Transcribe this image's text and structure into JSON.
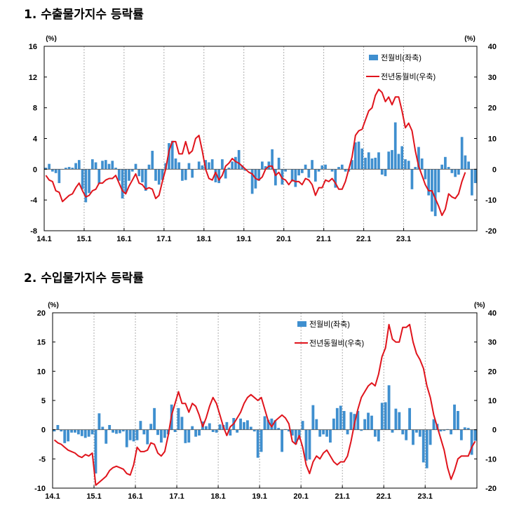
{
  "headings": [
    "1. 수출물가지수 등락률",
    "2. 수입물가지수 등락률"
  ],
  "colors": {
    "bar": "#3F8FCF",
    "line": "#E0141C",
    "grid": "#999999",
    "axis": "#000000"
  },
  "chart_data": [
    {
      "type": "bar",
      "title": "1. 수출물가지수 등락률",
      "ylabel_left": "(%)",
      "ylabel_right": "(%)",
      "ylim_left": [
        -8,
        16
      ],
      "ylim_right": [
        -20,
        40
      ],
      "yticks_left": [
        -8,
        -4,
        0,
        4,
        8,
        12,
        16
      ],
      "yticks_right": [
        -20,
        -10,
        0,
        10,
        20,
        30,
        40
      ],
      "xticks": [
        "14.1",
        "15.1",
        "16.1",
        "17.1",
        "18.1",
        "19.1",
        "20.1",
        "21.1",
        "22.1",
        "23.1"
      ],
      "grid": "vertical dashed at year starts",
      "legend_position": "top-right",
      "series": [
        {
          "name": "전월비(좌축)",
          "type": "bar",
          "axis": "left",
          "values": [
            0.2,
            0.7,
            -0.3,
            -0.5,
            -1.8,
            0,
            0.2,
            0.3,
            0.2,
            0.8,
            1.2,
            -2.6,
            -4.3,
            -3.1,
            1.3,
            0.9,
            -1.9,
            1.1,
            1.2,
            0.7,
            1.1,
            0.2,
            -1.5,
            -3.8,
            -3.1,
            -1.5,
            -0.3,
            0.7,
            -0.9,
            -1.7,
            -2.8,
            0.6,
            2.4,
            -1.5,
            -2.0,
            -1.4,
            0.8,
            3.4,
            3.7,
            1.4,
            0.9,
            -1.5,
            -1.4,
            0.8,
            -1.1,
            0,
            1.0,
            0.5,
            1.2,
            0.9,
            1.3,
            -1.7,
            -1.8,
            1.3,
            -1.2,
            0.2,
            1.0,
            1.6,
            2.5,
            0.5,
            -0.2,
            0,
            -3.2,
            -2.5,
            -1.5,
            1.0,
            0.4,
            1.0,
            2.6,
            -2.1,
            1.5,
            -2.0,
            -0.3,
            0,
            -1.6,
            -2.3,
            -0.8,
            -0.5,
            0.6,
            -1.1,
            1.2,
            -1.6,
            -0.3,
            0.5,
            0.6,
            0,
            -0.3,
            -2.4,
            0.3,
            0.6,
            -0.3,
            -0.3,
            1.2,
            3.5,
            3.6,
            2.7,
            1.5,
            2.2,
            1.4,
            1.5,
            2.2,
            -0.7,
            -0.9,
            2.3,
            2.5,
            6.1,
            2.0,
            3.0,
            1.3,
            1.1,
            -2.6,
            0.3,
            2.9,
            1.4,
            -1.3,
            -3.4,
            -5.5,
            -6.1,
            -3.0,
            0.6,
            1.6,
            0.3,
            -0.5,
            -1.0,
            -0.7,
            4.2,
            1.8,
            1.0,
            -3.4,
            -1.8
          ]
        },
        {
          "name": "전년동월비(우축)",
          "type": "line",
          "axis": "right",
          "values": [
            -2,
            -3.5,
            -4,
            -7,
            -7.5,
            -10.5,
            -9.5,
            -8.5,
            -8,
            -6,
            -4.5,
            -7,
            -9,
            -8.5,
            -7,
            -6.5,
            -4.5,
            -4.5,
            -3.5,
            -3,
            -3,
            -2,
            -4.5,
            -7,
            -8,
            -5.5,
            -3.5,
            -1.5,
            -4.5,
            -5,
            -6.5,
            -6,
            -6.5,
            -9.5,
            -8.5,
            -4,
            0,
            6,
            9,
            9,
            5,
            5,
            9,
            5,
            6,
            10,
            11,
            6,
            0,
            -3,
            -3.5,
            -1,
            -3.5,
            -2,
            1,
            2,
            3.5,
            2.5,
            2,
            1,
            0,
            -1,
            -1.5,
            -3,
            -3.5,
            -2.5,
            0,
            1,
            1,
            -2,
            -1,
            -3,
            -3.5,
            -5,
            -3.5,
            -4,
            -4,
            -5,
            -3,
            -3.5,
            -5,
            -8.5,
            -6,
            -6,
            -3.5,
            -4,
            -3,
            -4.5,
            -6.5,
            -6.5,
            -4,
            0,
            4,
            11,
            12.5,
            13,
            16,
            19,
            20,
            24,
            26,
            25,
            22,
            23.5,
            21,
            23.5,
            23.5,
            19,
            13.5,
            15,
            12.5,
            6,
            1,
            -2,
            -5,
            -7,
            -7,
            -9.5,
            -12,
            -15,
            -13,
            -8,
            -9,
            -9.5,
            -8,
            -4,
            -1
          ]
        }
      ]
    },
    {
      "type": "bar",
      "title": "2. 수입물가지수 등락률",
      "ylabel_left": "(%)",
      "ylabel_right": "(%)",
      "ylim_left": [
        -10,
        20
      ],
      "ylim_right": [
        -20,
        40
      ],
      "yticks_left": [
        -10,
        -5,
        0,
        5,
        10,
        15,
        20
      ],
      "yticks_right": [
        -20,
        -10,
        0,
        10,
        20,
        30,
        40
      ],
      "xticks": [
        "14.1",
        "15.1",
        "16.1",
        "17.1",
        "18.1",
        "19.1",
        "20.1",
        "21.1",
        "22.1",
        "23.1"
      ],
      "grid": "vertical dashed at year starts",
      "legend_position": "top-right",
      "series": [
        {
          "name": "전월비(좌축)",
          "type": "bar",
          "axis": "left",
          "values": [
            -0.3,
            0.8,
            -0.3,
            -2.3,
            -2.0,
            -0.5,
            -0.5,
            -0.8,
            -1.1,
            -1.4,
            -1.2,
            -0.8,
            -7.5,
            2.8,
            0.5,
            -2.4,
            0.8,
            -0.5,
            -0.7,
            -0.6,
            -0.3,
            -3.0,
            -1.8,
            -2.0,
            -1.8,
            1.5,
            -0.8,
            -2.5,
            1.0,
            3.7,
            -0.9,
            -2.2,
            -1.4,
            -0.8,
            4.3,
            -0.4,
            3.7,
            2.2,
            -2.3,
            -2.2,
            0.6,
            -1.2,
            -1.0,
            1.4,
            0.6,
            1.1,
            -0.4,
            -0.5,
            0.9,
            0.8,
            1.3,
            -1.0,
            2.0,
            -0.5,
            1.9,
            1.3,
            1.6,
            0.5,
            -0.3,
            -4.8,
            -3.8,
            2.3,
            1.7,
            1.9,
            1.6,
            0.3,
            -3.8,
            0.1,
            -0.3,
            -1.0,
            -2.5,
            -1.7,
            1.5,
            -5.3,
            -5.1,
            4.2,
            1.8,
            -1.2,
            -0.8,
            -1.2,
            -2.2,
            1.9,
            3.7,
            4.1,
            3.2,
            -0.8,
            3.0,
            2.7,
            3.2,
            -0.2,
            1.8,
            2.9,
            2.4,
            -1.2,
            -2.0,
            4.6,
            4.7,
            7.6,
            -0.5,
            3.6,
            3.0,
            -0.8,
            -1.8,
            3.7,
            -2.6,
            -0.5,
            -1.2,
            -5.6,
            -6.6,
            -2.6,
            1.8,
            1.0,
            -0.3,
            -0.2,
            0.1,
            -0.8,
            4.3,
            3.2,
            -1.8,
            0.4,
            0.3,
            -4.3,
            -1.9
          ]
        },
        {
          "name": "전년동월비(우축)",
          "type": "line",
          "axis": "right",
          "values": [
            -3.5,
            -4.5,
            -5,
            -6,
            -7,
            -7.5,
            -8,
            -9,
            -9.5,
            -8.5,
            -9,
            -8,
            -19,
            -18,
            -17,
            -16,
            -14,
            -13,
            -12.5,
            -13,
            -13.5,
            -15,
            -15.5,
            -12,
            -6,
            -7.5,
            -7.5,
            -7,
            -4.5,
            -5,
            -8,
            -9,
            -7.5,
            -2,
            5,
            9,
            13,
            9,
            9,
            6,
            9,
            8,
            5,
            1,
            4,
            8,
            11,
            9,
            5,
            1,
            -2,
            1,
            2,
            4,
            6,
            9,
            11,
            12,
            11,
            10,
            11,
            7,
            3,
            1,
            3,
            4,
            5,
            4,
            2,
            -4,
            -5,
            -2,
            -6,
            -12,
            -15,
            -11,
            -9,
            -10,
            -8,
            -7,
            -9,
            -11,
            -12,
            -11,
            -11,
            -9,
            -4,
            2,
            7,
            11,
            13,
            15,
            16,
            15,
            19,
            25,
            28,
            36,
            31,
            30,
            30,
            35,
            35,
            36,
            30,
            26,
            24,
            21,
            15,
            11,
            5,
            1,
            -3,
            -7,
            -13,
            -17,
            -14,
            -10,
            -9,
            -9,
            -9,
            -6,
            -4
          ]
        }
      ]
    }
  ]
}
